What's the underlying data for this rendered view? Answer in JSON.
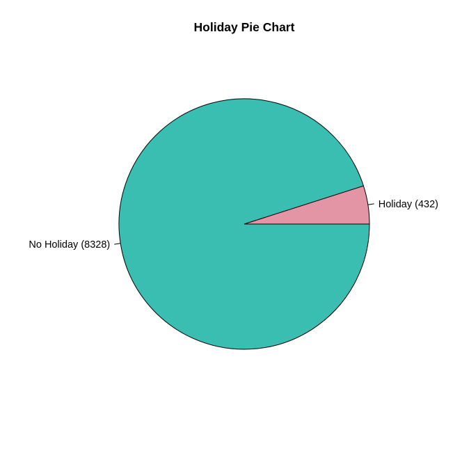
{
  "chart_data": {
    "type": "pie",
    "title": "Holiday Pie Chart",
    "slices": [
      {
        "label": "Holiday (432)",
        "value": 432,
        "color": "#E495A5"
      },
      {
        "label": "No Holiday (8328)",
        "value": 8328,
        "color": "#39BEB1"
      }
    ],
    "start_angle_deg": 0,
    "direction": "counterclockwise"
  }
}
